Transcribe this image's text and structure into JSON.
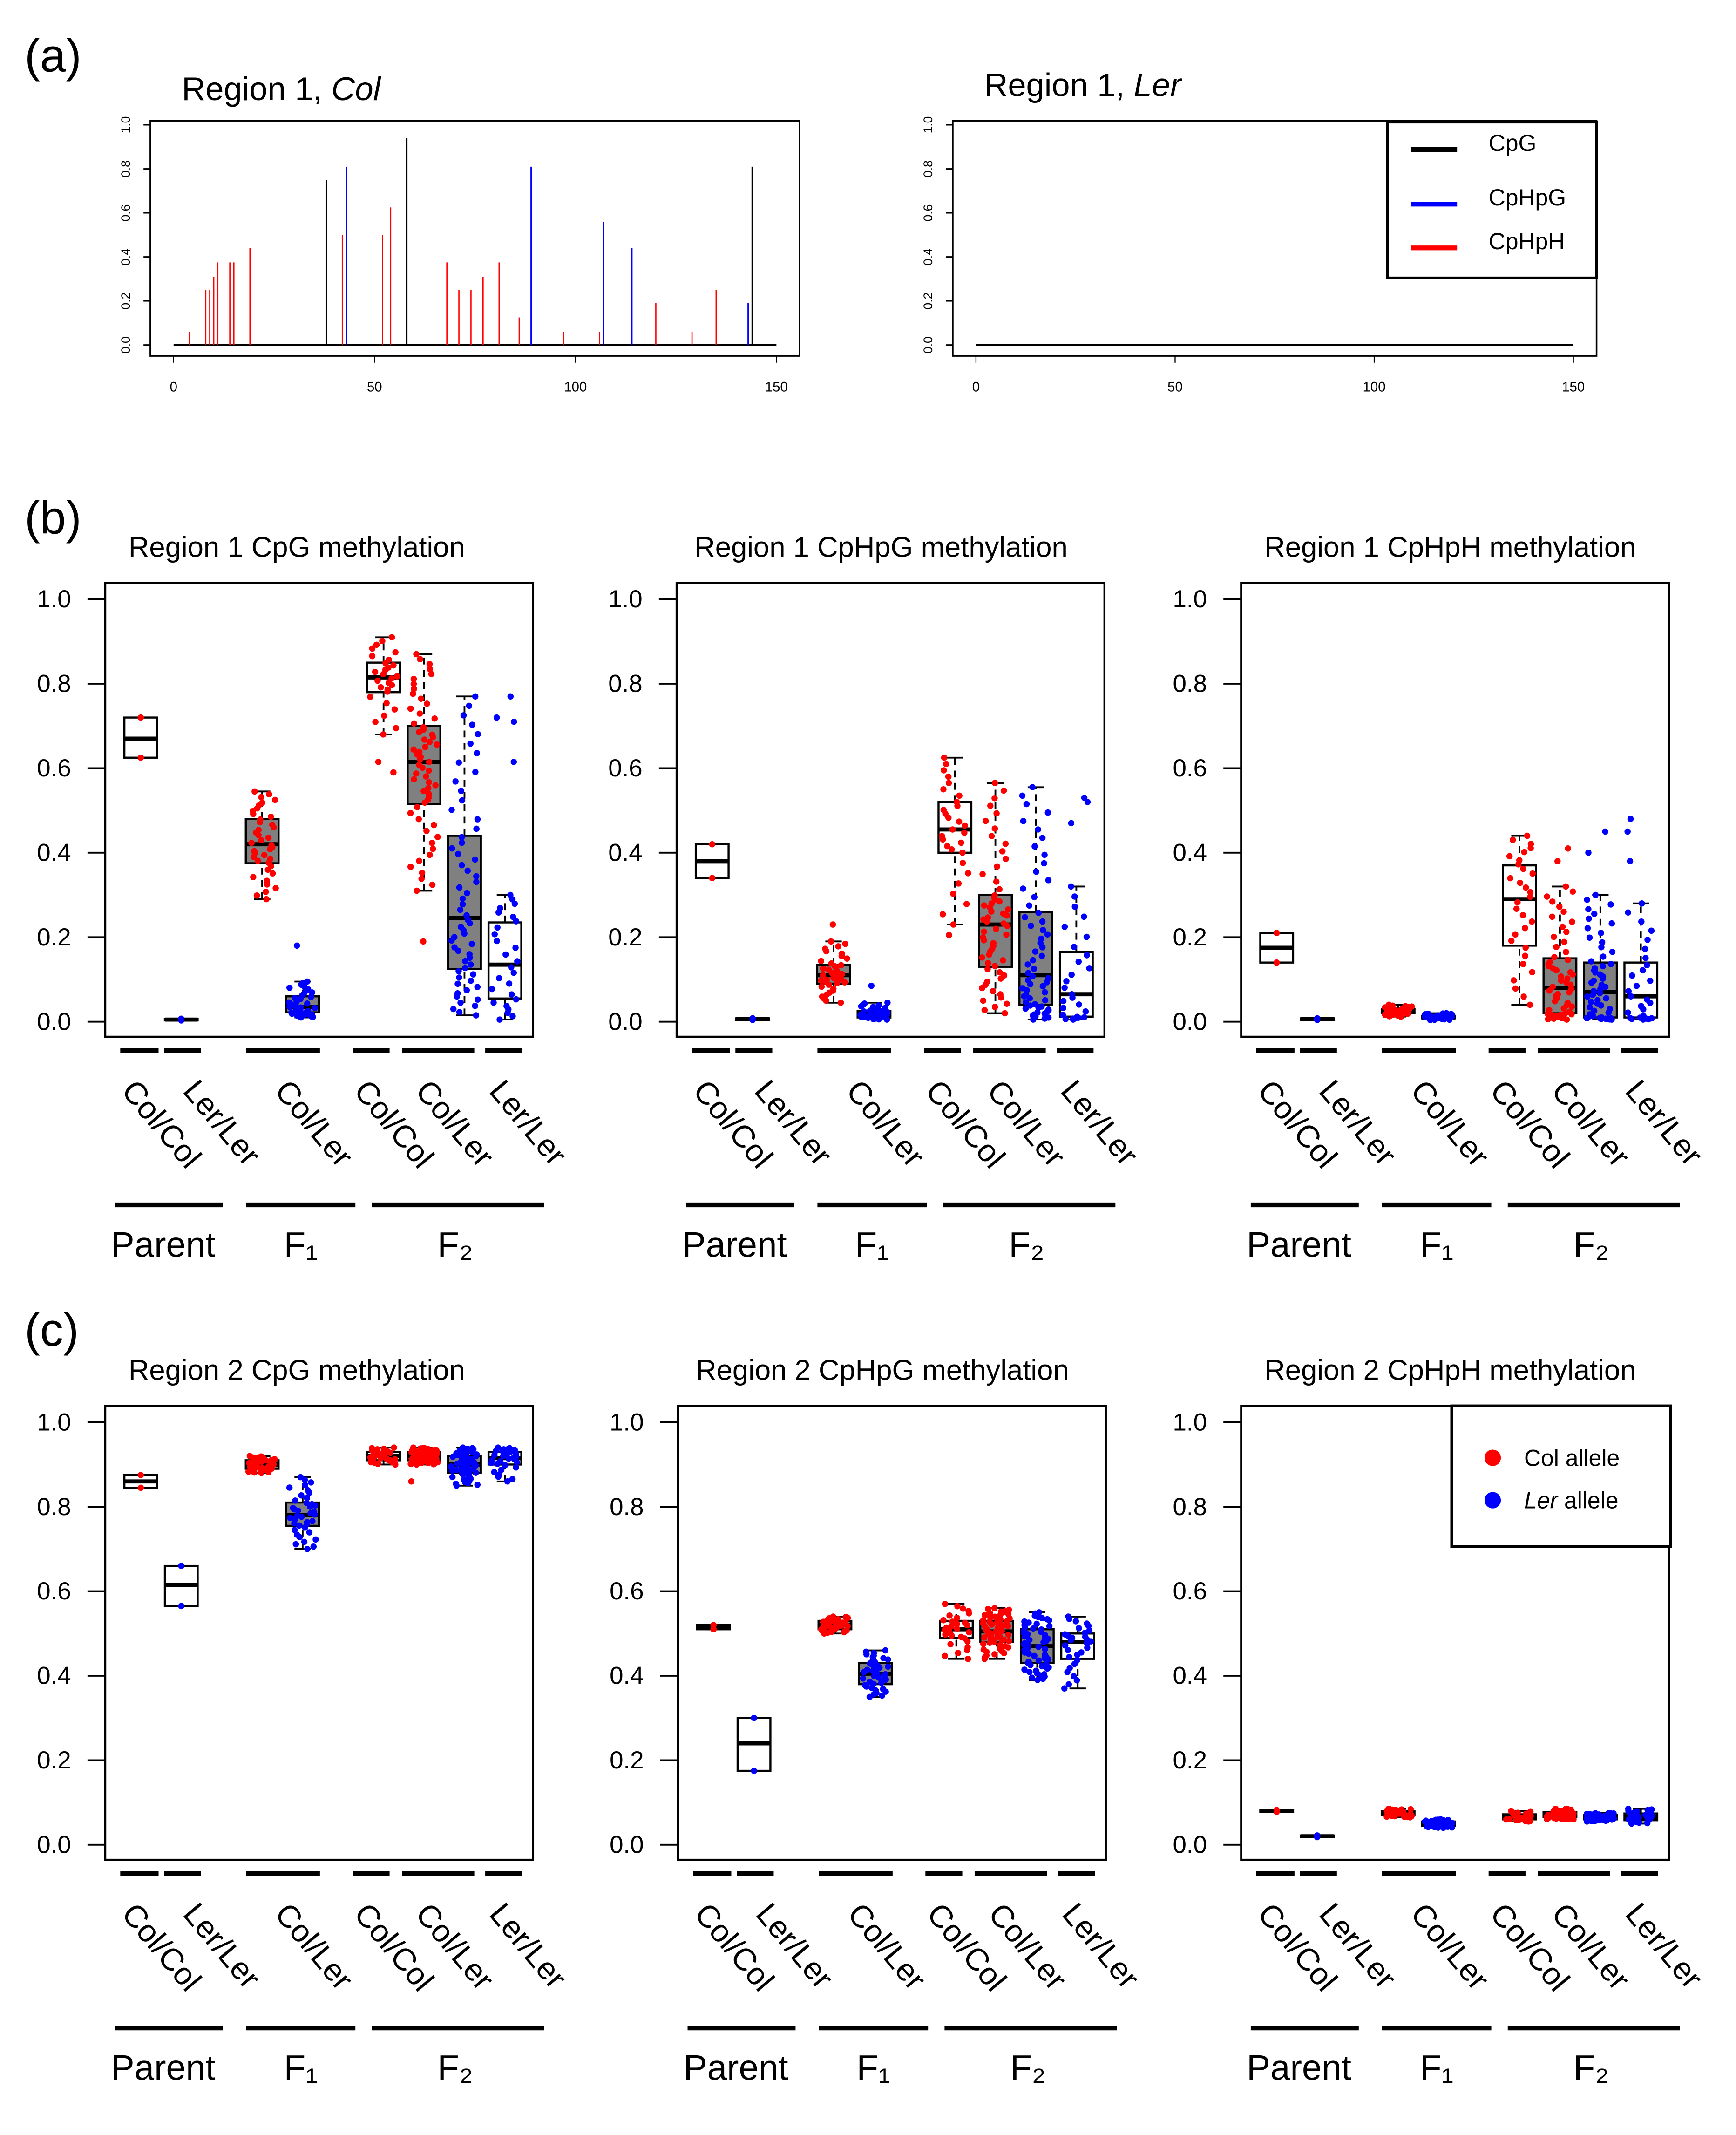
{
  "panel_labels": {
    "a": "(a)",
    "b": "(b)",
    "c": "(c)"
  },
  "colors": {
    "CpG": "#000000",
    "CpHpG": "#0000ff",
    "CpHpH": "#ff0000",
    "col_allele": "#ff0000",
    "ler_allele": "#0000ff",
    "het_box_fill": "#808080"
  },
  "chart_data": [
    {
      "type": "bar",
      "panel": "a",
      "title": "Region 1, ",
      "title_em": "Col",
      "xlim": [
        0,
        150
      ],
      "ylim": [
        0,
        1
      ],
      "xticks": [
        "0",
        "50",
        "100",
        "150"
      ],
      "yticks": [
        "0.0",
        "0.2",
        "0.4",
        "0.6",
        "0.8",
        "1.0"
      ],
      "points": [
        {
          "x": 4,
          "y": 0.06,
          "context": "CpHpH"
        },
        {
          "x": 8,
          "y": 0.25,
          "context": "CpHpH"
        },
        {
          "x": 9,
          "y": 0.25,
          "context": "CpHpH"
        },
        {
          "x": 10,
          "y": 0.31,
          "context": "CpHpH"
        },
        {
          "x": 11,
          "y": 0.375,
          "context": "CpHpH"
        },
        {
          "x": 14,
          "y": 0.375,
          "context": "CpHpH"
        },
        {
          "x": 15,
          "y": 0.375,
          "context": "CpHpH"
        },
        {
          "x": 19,
          "y": 0.44,
          "context": "CpHpH"
        },
        {
          "x": 38,
          "y": 0.75,
          "context": "CpG"
        },
        {
          "x": 42,
          "y": 0.5,
          "context": "CpHpH"
        },
        {
          "x": 43,
          "y": 0.81,
          "context": "CpHpG"
        },
        {
          "x": 52,
          "y": 0.5,
          "context": "CpHpH"
        },
        {
          "x": 54,
          "y": 0.625,
          "context": "CpHpH"
        },
        {
          "x": 58,
          "y": 0.94,
          "context": "CpG"
        },
        {
          "x": 68,
          "y": 0.375,
          "context": "CpHpH"
        },
        {
          "x": 71,
          "y": 0.25,
          "context": "CpHpH"
        },
        {
          "x": 74,
          "y": 0.25,
          "context": "CpHpH"
        },
        {
          "x": 77,
          "y": 0.31,
          "context": "CpHpH"
        },
        {
          "x": 81,
          "y": 0.375,
          "context": "CpHpH"
        },
        {
          "x": 86,
          "y": 0.125,
          "context": "CpHpH"
        },
        {
          "x": 89,
          "y": 0.81,
          "context": "CpHpG"
        },
        {
          "x": 97,
          "y": 0.06,
          "context": "CpHpH"
        },
        {
          "x": 106,
          "y": 0.06,
          "context": "CpHpH"
        },
        {
          "x": 107,
          "y": 0.56,
          "context": "CpHpG"
        },
        {
          "x": 114,
          "y": 0.44,
          "context": "CpHpG"
        },
        {
          "x": 120,
          "y": 0.19,
          "context": "CpHpH"
        },
        {
          "x": 129,
          "y": 0.06,
          "context": "CpHpH"
        },
        {
          "x": 135,
          "y": 0.25,
          "context": "CpHpH"
        },
        {
          "x": 143,
          "y": 0.19,
          "context": "CpHpG"
        },
        {
          "x": 144,
          "y": 0.81,
          "context": "CpG"
        }
      ]
    },
    {
      "type": "bar",
      "panel": "a",
      "title": "Region 1, ",
      "title_em": "Ler",
      "xlim": [
        0,
        150
      ],
      "ylim": [
        0,
        1
      ],
      "xticks": [
        "0",
        "50",
        "100",
        "150"
      ],
      "yticks": [
        "0.0",
        "0.2",
        "0.4",
        "0.6",
        "0.8",
        "1.0"
      ],
      "points": [],
      "legend": {
        "placement": "top-right",
        "entries": [
          {
            "label": "CpG",
            "color": "#000000"
          },
          {
            "label": "CpHpG",
            "color": "#0000ff"
          },
          {
            "label": "CpHpH",
            "color": "#ff0000"
          }
        ]
      }
    },
    {
      "type": "box",
      "panel": "b",
      "title": "Region 1 CpG methylation",
      "ylim": [
        0,
        1
      ],
      "boxes": [
        {
          "pos": 1,
          "allele": "Col",
          "n": 2,
          "stats": [
            0.625,
            0.625,
            0.67,
            0.72,
            0.72
          ],
          "outliers": [],
          "filled": false
        },
        {
          "pos": 2,
          "allele": "Ler",
          "n": 2,
          "stats": [
            0.003,
            0.003,
            0.005,
            0.007,
            0.007
          ],
          "outliers": [],
          "filled": false
        },
        {
          "pos": 4,
          "allele": "Col",
          "n": 40,
          "stats": [
            0.29,
            0.375,
            0.42,
            0.48,
            0.545
          ],
          "outliers": [],
          "filled": true
        },
        {
          "pos": 5,
          "allele": "Ler",
          "n": 40,
          "stats": [
            0.01,
            0.022,
            0.035,
            0.06,
            0.095
          ],
          "outliers": [
            0.18
          ],
          "filled": true
        },
        {
          "pos": 7,
          "allele": "Col",
          "n": 30,
          "stats": [
            0.68,
            0.78,
            0.815,
            0.85,
            0.91
          ],
          "outliers": [
            0.615,
            0.59
          ],
          "filled": false
        },
        {
          "pos": 8,
          "allele": "Col",
          "n": 60,
          "stats": [
            0.31,
            0.515,
            0.615,
            0.7,
            0.87
          ],
          "outliers": [
            0.19
          ],
          "filled": true
        },
        {
          "pos": 9,
          "allele": "Ler",
          "n": 60,
          "stats": [
            0.015,
            0.125,
            0.245,
            0.44,
            0.77
          ],
          "outliers": [],
          "filled": true
        },
        {
          "pos": 10,
          "allele": "Ler",
          "n": 30,
          "stats": [
            0.005,
            0.055,
            0.135,
            0.235,
            0.3
          ],
          "outliers": [
            0.77,
            0.72,
            0.71,
            0.615
          ],
          "filled": false
        }
      ]
    },
    {
      "type": "box",
      "panel": "b",
      "title": "Region 1 CpHpG methylation",
      "ylim": [
        0,
        1
      ],
      "boxes": [
        {
          "pos": 1,
          "allele": "Col",
          "n": 2,
          "stats": [
            0.34,
            0.34,
            0.38,
            0.42,
            0.42
          ],
          "outliers": [],
          "filled": false
        },
        {
          "pos": 2,
          "allele": "Ler",
          "n": 2,
          "stats": [
            0.004,
            0.004,
            0.006,
            0.008,
            0.008
          ],
          "outliers": [],
          "filled": false
        },
        {
          "pos": 4,
          "allele": "Col",
          "n": 40,
          "stats": [
            0.045,
            0.09,
            0.11,
            0.135,
            0.19
          ],
          "outliers": [
            0.23
          ],
          "filled": true
        },
        {
          "pos": 5,
          "allele": "Ler",
          "n": 40,
          "stats": [
            0.005,
            0.01,
            0.02,
            0.025,
            0.045
          ],
          "outliers": [
            0.085
          ],
          "filled": true
        },
        {
          "pos": 7,
          "allele": "Col",
          "n": 30,
          "stats": [
            0.23,
            0.4,
            0.455,
            0.52,
            0.625
          ],
          "outliers": [
            0.205
          ],
          "filled": false
        },
        {
          "pos": 8,
          "allele": "Col",
          "n": 60,
          "stats": [
            0.02,
            0.13,
            0.23,
            0.3,
            0.565
          ],
          "outliers": [],
          "filled": true
        },
        {
          "pos": 9,
          "allele": "Ler",
          "n": 60,
          "stats": [
            0.005,
            0.04,
            0.11,
            0.26,
            0.555
          ],
          "outliers": [],
          "filled": true
        },
        {
          "pos": 10,
          "allele": "Ler",
          "n": 30,
          "stats": [
            0.005,
            0.012,
            0.065,
            0.165,
            0.32
          ],
          "outliers": [
            0.53,
            0.52,
            0.47
          ],
          "filled": false
        }
      ]
    },
    {
      "type": "box",
      "panel": "b",
      "title": "Region 1 CpHpH methylation",
      "ylim": [
        0,
        1
      ],
      "boxes": [
        {
          "pos": 1,
          "allele": "Col",
          "n": 2,
          "stats": [
            0.14,
            0.14,
            0.175,
            0.21,
            0.21
          ],
          "outliers": [],
          "filled": false
        },
        {
          "pos": 2,
          "allele": "Ler",
          "n": 2,
          "stats": [
            0.004,
            0.004,
            0.006,
            0.008,
            0.008
          ],
          "outliers": [],
          "filled": false
        },
        {
          "pos": 4,
          "allele": "Col",
          "n": 40,
          "stats": [
            0.012,
            0.02,
            0.025,
            0.03,
            0.04
          ],
          "outliers": [],
          "filled": true
        },
        {
          "pos": 5,
          "allele": "Ler",
          "n": 40,
          "stats": [
            0.004,
            0.008,
            0.01,
            0.014,
            0.02
          ],
          "outliers": [],
          "filled": true
        },
        {
          "pos": 7,
          "allele": "Col",
          "n": 30,
          "stats": [
            0.04,
            0.18,
            0.29,
            0.37,
            0.44
          ],
          "outliers": [],
          "filled": false
        },
        {
          "pos": 8,
          "allele": "Col",
          "n": 60,
          "stats": [
            0.005,
            0.02,
            0.08,
            0.15,
            0.32
          ],
          "outliers": [
            0.41,
            0.38
          ],
          "filled": true
        },
        {
          "pos": 9,
          "allele": "Ler",
          "n": 60,
          "stats": [
            0.005,
            0.01,
            0.07,
            0.14,
            0.3
          ],
          "outliers": [
            0.45,
            0.4
          ],
          "filled": true
        },
        {
          "pos": 10,
          "allele": "Ler",
          "n": 30,
          "stats": [
            0.005,
            0.01,
            0.06,
            0.14,
            0.28
          ],
          "outliers": [
            0.48,
            0.45,
            0.38
          ],
          "filled": false
        }
      ]
    },
    {
      "type": "box",
      "panel": "c",
      "title": "Region 2 CpG methylation",
      "ylim": [
        0,
        1
      ],
      "boxes": [
        {
          "pos": 1,
          "allele": "Col",
          "n": 2,
          "stats": [
            0.845,
            0.845,
            0.86,
            0.875,
            0.875
          ],
          "outliers": [],
          "filled": false
        },
        {
          "pos": 2,
          "allele": "Ler",
          "n": 2,
          "stats": [
            0.565,
            0.565,
            0.615,
            0.66,
            0.66
          ],
          "outliers": [],
          "filled": false
        },
        {
          "pos": 4,
          "allele": "Col",
          "n": 40,
          "stats": [
            0.88,
            0.89,
            0.9,
            0.91,
            0.92
          ],
          "outliers": [],
          "filled": true
        },
        {
          "pos": 5,
          "allele": "Ler",
          "n": 40,
          "stats": [
            0.7,
            0.755,
            0.78,
            0.81,
            0.87
          ],
          "outliers": [],
          "filled": true
        },
        {
          "pos": 7,
          "allele": "Col",
          "n": 30,
          "stats": [
            0.9,
            0.91,
            0.92,
            0.93,
            0.94
          ],
          "outliers": [],
          "filled": false
        },
        {
          "pos": 8,
          "allele": "Col",
          "n": 60,
          "stats": [
            0.9,
            0.91,
            0.92,
            0.93,
            0.94
          ],
          "outliers": [
            0.86
          ],
          "filled": true
        },
        {
          "pos": 9,
          "allele": "Ler",
          "n": 60,
          "stats": [
            0.85,
            0.88,
            0.9,
            0.92,
            0.94
          ],
          "outliers": [],
          "filled": true
        },
        {
          "pos": 10,
          "allele": "Ler",
          "n": 30,
          "stats": [
            0.86,
            0.9,
            0.915,
            0.93,
            0.94
          ],
          "outliers": [],
          "filled": false
        }
      ]
    },
    {
      "type": "box",
      "panel": "c",
      "title": "Region 2 CpHpG methylation",
      "ylim": [
        0,
        1
      ],
      "boxes": [
        {
          "pos": 1,
          "allele": "Col",
          "n": 2,
          "stats": [
            0.51,
            0.51,
            0.515,
            0.52,
            0.52
          ],
          "outliers": [],
          "filled": false
        },
        {
          "pos": 2,
          "allele": "Ler",
          "n": 2,
          "stats": [
            0.175,
            0.175,
            0.24,
            0.3,
            0.3
          ],
          "outliers": [],
          "filled": false
        },
        {
          "pos": 4,
          "allele": "Col",
          "n": 40,
          "stats": [
            0.5,
            0.51,
            0.52,
            0.53,
            0.54
          ],
          "outliers": [],
          "filled": true
        },
        {
          "pos": 5,
          "allele": "Ler",
          "n": 40,
          "stats": [
            0.35,
            0.38,
            0.405,
            0.43,
            0.46
          ],
          "outliers": [],
          "filled": true
        },
        {
          "pos": 7,
          "allele": "Col",
          "n": 30,
          "stats": [
            0.44,
            0.49,
            0.51,
            0.53,
            0.57
          ],
          "outliers": [],
          "filled": false
        },
        {
          "pos": 8,
          "allele": "Col",
          "n": 60,
          "stats": [
            0.44,
            0.48,
            0.505,
            0.53,
            0.56
          ],
          "outliers": [],
          "filled": true
        },
        {
          "pos": 9,
          "allele": "Ler",
          "n": 60,
          "stats": [
            0.39,
            0.43,
            0.47,
            0.51,
            0.55
          ],
          "outliers": [],
          "filled": true
        },
        {
          "pos": 10,
          "allele": "Ler",
          "n": 30,
          "stats": [
            0.37,
            0.44,
            0.48,
            0.5,
            0.54
          ],
          "outliers": [],
          "filled": false
        }
      ]
    },
    {
      "type": "box",
      "panel": "c",
      "title": "Region 2 CpHpH methylation",
      "ylim": [
        0,
        1
      ],
      "boxes": [
        {
          "pos": 1,
          "allele": "Col",
          "n": 2,
          "stats": [
            0.078,
            0.078,
            0.08,
            0.082,
            0.082
          ],
          "outliers": [],
          "filled": false
        },
        {
          "pos": 2,
          "allele": "Ler",
          "n": 2,
          "stats": [
            0.018,
            0.018,
            0.02,
            0.022,
            0.022
          ],
          "outliers": [],
          "filled": false
        },
        {
          "pos": 4,
          "allele": "Col",
          "n": 40,
          "stats": [
            0.065,
            0.07,
            0.075,
            0.08,
            0.085
          ],
          "outliers": [],
          "filled": true
        },
        {
          "pos": 5,
          "allele": "Ler",
          "n": 40,
          "stats": [
            0.04,
            0.045,
            0.05,
            0.055,
            0.06
          ],
          "outliers": [],
          "filled": true
        },
        {
          "pos": 7,
          "allele": "Col",
          "n": 30,
          "stats": [
            0.055,
            0.06,
            0.065,
            0.072,
            0.08
          ],
          "outliers": [],
          "filled": false
        },
        {
          "pos": 8,
          "allele": "Col",
          "n": 60,
          "stats": [
            0.06,
            0.065,
            0.07,
            0.077,
            0.085
          ],
          "outliers": [],
          "filled": true
        },
        {
          "pos": 9,
          "allele": "Ler",
          "n": 60,
          "stats": [
            0.055,
            0.06,
            0.065,
            0.07,
            0.075
          ],
          "outliers": [],
          "filled": true
        },
        {
          "pos": 10,
          "allele": "Ler",
          "n": 30,
          "stats": [
            0.05,
            0.058,
            0.065,
            0.074,
            0.085
          ],
          "outliers": [],
          "filled": false
        }
      ],
      "legend": {
        "placement": "top-right",
        "entries": [
          {
            "em": "Col",
            "text": " allele",
            "color": "#ff0000"
          },
          {
            "em": "Ler",
            "text": " allele",
            "color": "#0000ff"
          }
        ]
      }
    }
  ],
  "box_axis": {
    "yticks": [
      "0.0",
      "0.2",
      "0.4",
      "0.6",
      "0.8",
      "1.0"
    ],
    "categories": [
      "Col/Col",
      "Ler/Ler",
      "Col/Ler",
      "Col/Col",
      "Col/Ler",
      "Ler/Ler"
    ],
    "groups": [
      "Parent",
      "F₁",
      "F₂"
    ]
  }
}
